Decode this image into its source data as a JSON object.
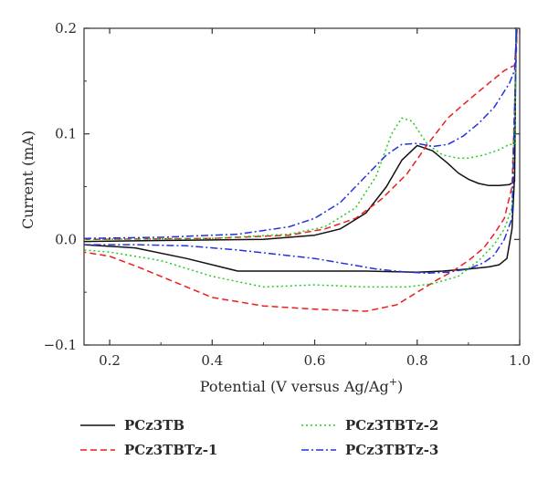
{
  "chart_data": {
    "type": "line",
    "xlabel_parts": [
      "Potential (V versus Ag/Ag",
      "+",
      ")"
    ],
    "ylabel": "Current (mA)",
    "xlim": [
      0.15,
      1.0
    ],
    "ylim": [
      -0.1,
      0.2
    ],
    "xticks": [
      0.2,
      0.4,
      0.6,
      0.8,
      1.0
    ],
    "xtick_labels": [
      "0.2",
      "0.4",
      "0.6",
      "0.8",
      "1.0"
    ],
    "yticks": [
      -0.1,
      0.0,
      0.1,
      0.2
    ],
    "ytick_labels": [
      "−0.1",
      "0.0",
      "0.1",
      "0.2"
    ],
    "grid": false,
    "legend_position": "bottom",
    "series": [
      {
        "name": "PCz3TB",
        "color": "#111111",
        "dash": "solid",
        "x": [
          0.15,
          0.3,
          0.5,
          0.6,
          0.65,
          0.7,
          0.74,
          0.77,
          0.8,
          0.83,
          0.86,
          0.88,
          0.9,
          0.92,
          0.94,
          0.96,
          0.98,
          0.99,
          0.993,
          0.99,
          0.985,
          0.975,
          0.96,
          0.94,
          0.9,
          0.85,
          0.8,
          0.7,
          0.6,
          0.5,
          0.45,
          0.35,
          0.25,
          0.15
        ],
        "y": [
          -0.002,
          -0.001,
          0.0,
          0.004,
          0.01,
          0.025,
          0.05,
          0.075,
          0.089,
          0.084,
          0.072,
          0.063,
          0.057,
          0.053,
          0.051,
          0.051,
          0.052,
          0.055,
          0.2,
          0.06,
          0.01,
          -0.018,
          -0.024,
          -0.026,
          -0.028,
          -0.03,
          -0.031,
          -0.03,
          -0.03,
          -0.03,
          -0.03,
          -0.018,
          -0.008,
          -0.005
        ]
      },
      {
        "name": "PCz3TBTz-1",
        "color": "#ee1c1c",
        "dash": "dashed",
        "x": [
          0.15,
          0.4,
          0.55,
          0.62,
          0.68,
          0.73,
          0.78,
          0.82,
          0.86,
          0.9,
          0.94,
          0.97,
          0.99,
          0.995,
          0.985,
          0.97,
          0.95,
          0.93,
          0.9,
          0.87,
          0.84,
          0.8,
          0.76,
          0.7,
          0.6,
          0.5,
          0.4,
          0.3,
          0.25,
          0.2,
          0.15
        ],
        "y": [
          0.0,
          0.001,
          0.004,
          0.01,
          0.02,
          0.038,
          0.062,
          0.09,
          0.115,
          0.132,
          0.148,
          0.16,
          0.165,
          0.2,
          0.05,
          0.02,
          0.005,
          -0.008,
          -0.02,
          -0.03,
          -0.038,
          -0.05,
          -0.062,
          -0.068,
          -0.066,
          -0.063,
          -0.055,
          -0.035,
          -0.025,
          -0.016,
          -0.012
        ]
      },
      {
        "name": "PCz3TBTz-2",
        "color": "#22cc22",
        "dash": "dotted",
        "x": [
          0.15,
          0.4,
          0.55,
          0.62,
          0.68,
          0.72,
          0.75,
          0.77,
          0.79,
          0.82,
          0.85,
          0.88,
          0.9,
          0.93,
          0.96,
          0.98,
          0.99,
          0.994,
          0.985,
          0.97,
          0.95,
          0.92,
          0.88,
          0.83,
          0.78,
          0.7,
          0.6,
          0.5,
          0.4,
          0.3,
          0.2,
          0.15
        ],
        "y": [
          0.0,
          0.001,
          0.005,
          0.012,
          0.03,
          0.06,
          0.1,
          0.115,
          0.112,
          0.09,
          0.08,
          0.077,
          0.077,
          0.08,
          0.085,
          0.09,
          0.09,
          0.2,
          0.03,
          0.01,
          -0.005,
          -0.02,
          -0.035,
          -0.042,
          -0.045,
          -0.045,
          -0.043,
          -0.045,
          -0.035,
          -0.02,
          -0.012,
          -0.01
        ]
      },
      {
        "name": "PCz3TBTz-3",
        "color": "#2233dd",
        "dash": "dashdot",
        "x": [
          0.15,
          0.3,
          0.45,
          0.55,
          0.6,
          0.65,
          0.7,
          0.74,
          0.77,
          0.8,
          0.83,
          0.86,
          0.89,
          0.92,
          0.95,
          0.98,
          0.99,
          0.994,
          0.985,
          0.97,
          0.95,
          0.93,
          0.9,
          0.86,
          0.82,
          0.78,
          0.72,
          0.6,
          0.45,
          0.35,
          0.25,
          0.15
        ],
        "y": [
          0.001,
          0.002,
          0.005,
          0.012,
          0.02,
          0.035,
          0.06,
          0.08,
          0.09,
          0.091,
          0.088,
          0.09,
          0.098,
          0.11,
          0.125,
          0.148,
          0.16,
          0.2,
          0.02,
          0.0,
          -0.015,
          -0.022,
          -0.028,
          -0.031,
          -0.032,
          -0.031,
          -0.028,
          -0.018,
          -0.01,
          -0.006,
          -0.005,
          -0.005
        ]
      }
    ]
  }
}
